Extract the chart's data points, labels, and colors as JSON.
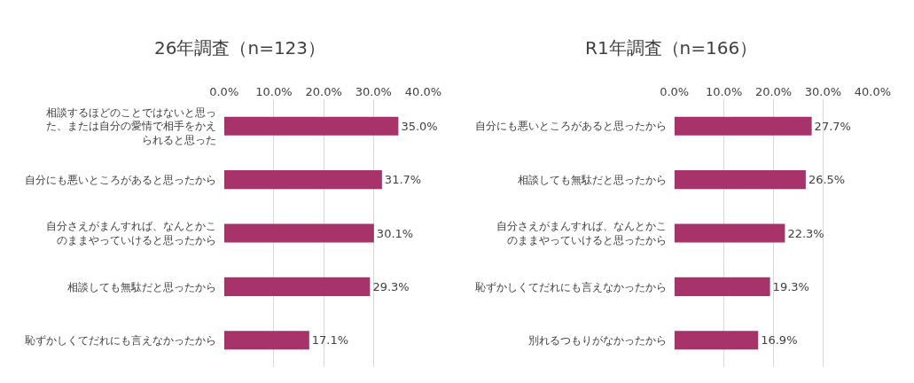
{
  "chart_data": [
    {
      "type": "bar",
      "orientation": "horizontal",
      "title": "26年調査（n=123）",
      "categories": [
        "相談するほどのことではないと思った、または自分の愛情で相手をかえられると思った",
        "自分にも悪いところがあると思ったから",
        "自分さえがまんすれば、なんとかこのままやっていけると思ったから",
        "相談しても無駄だと思ったから",
        "恥ずかしくてだれにも言えなかったから"
      ],
      "values": [
        35.0,
        31.7,
        30.1,
        29.3,
        17.1
      ],
      "value_labels": [
        "35.0%",
        "31.7%",
        "30.1%",
        "29.3%",
        "17.1%"
      ],
      "color": "#a8336b",
      "xlim": [
        0,
        40
      ],
      "xticks": [
        {
          "value": 0,
          "label": "0.0%"
        },
        {
          "value": 10,
          "label": "10.0%"
        },
        {
          "value": 20,
          "label": "20.0%"
        },
        {
          "value": 30,
          "label": "30.0%"
        },
        {
          "value": 40,
          "label": "40.0%"
        }
      ],
      "grid": "x",
      "legend": false
    },
    {
      "type": "bar",
      "orientation": "horizontal",
      "title": "R1年調査（n=166）",
      "categories": [
        "自分にも悪いところがあると思ったから",
        "相談しても無駄だと思ったから",
        "自分さえがまんすれば、なんとかこのままやっていけると思ったから",
        "恥ずかしくてだれにも言えなかったから",
        "別れるつもりがなかったから"
      ],
      "values": [
        27.7,
        26.5,
        22.3,
        19.3,
        16.9
      ],
      "value_labels": [
        "27.7%",
        "26.5%",
        "22.3%",
        "19.3%",
        "16.9%"
      ],
      "color": "#a8336b",
      "xlim": [
        0,
        40
      ],
      "xticks": [
        {
          "value": 0,
          "label": "0.0%"
        },
        {
          "value": 10,
          "label": "10.0%"
        },
        {
          "value": 20,
          "label": "20.0%"
        },
        {
          "value": 30,
          "label": "30.0%"
        },
        {
          "value": 40,
          "label": "40.0%"
        }
      ],
      "grid": "x",
      "legend": false
    }
  ]
}
